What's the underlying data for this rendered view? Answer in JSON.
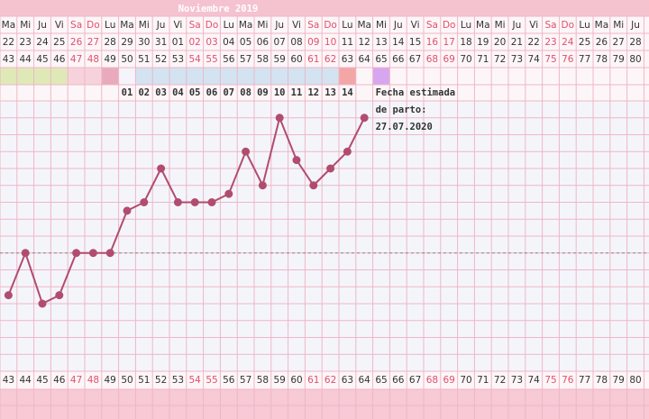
{
  "header": {
    "month": "Noviembre 2019"
  },
  "chart_data": {
    "type": "line",
    "weekdays": [
      "Ma",
      "Mi",
      "Ju",
      "Vi",
      "Sa",
      "Do",
      "Lu",
      "Ma",
      "Mi",
      "Ju",
      "Vi",
      "Sa",
      "Do",
      "Lu",
      "Ma",
      "Mi",
      "Ju",
      "Vi",
      "Sa",
      "Do",
      "Lu",
      "Ma",
      "Mi",
      "Ju",
      "Vi",
      "Sa",
      "Do",
      "Lu",
      "Ma",
      "Mi",
      "Ju",
      "Vi",
      "Sa",
      "Do",
      "Lu",
      "Ma",
      "Mi",
      "Ju"
    ],
    "dates": [
      "22",
      "23",
      "24",
      "25",
      "26",
      "27",
      "28",
      "29",
      "30",
      "31",
      "01",
      "02",
      "03",
      "04",
      "05",
      "06",
      "07",
      "08",
      "09",
      "10",
      "11",
      "12",
      "13",
      "14",
      "15",
      "16",
      "17",
      "18",
      "19",
      "20",
      "21",
      "22",
      "23",
      "24",
      "25",
      "26",
      "27",
      "28"
    ],
    "categories": [
      43,
      44,
      45,
      46,
      47,
      48,
      49,
      50,
      51,
      52,
      53,
      54,
      55,
      56,
      57,
      58,
      59,
      60,
      61,
      62,
      63,
      64,
      65,
      66,
      67,
      68,
      69,
      70,
      71,
      72,
      73,
      74,
      75,
      76,
      77,
      78,
      79,
      80
    ],
    "weekend": [
      false,
      false,
      false,
      false,
      true,
      true,
      false,
      false,
      false,
      false,
      false,
      true,
      true,
      false,
      false,
      false,
      false,
      false,
      true,
      true,
      false,
      false,
      false,
      false,
      false,
      true,
      true,
      false,
      false,
      false,
      false,
      false,
      true,
      true,
      false,
      false,
      false,
      false
    ],
    "weekend_color": "#e0506e",
    "band_colors": [
      "#dfe9b8",
      "#dfe9b8",
      "#dfe9b8",
      "#dfe9b8",
      "#f6d3dc",
      "#f6d3dc",
      "#e9aabb",
      "#f4f4fa",
      "#d3e3f2",
      "#d3e3f2",
      "#d3e3f2",
      "#d3e3f2",
      "#d3e3f2",
      "#d3e3f2",
      "#d3e3f2",
      "#d3e3f2",
      "#d3e3f2",
      "#d3e3f2",
      "#d3e3f2",
      "#d3e3f2",
      "#f4a6a6",
      null,
      "#d7a6f0",
      null,
      null,
      null,
      null,
      null,
      null,
      null,
      null,
      null,
      null,
      null,
      null,
      null,
      null,
      null
    ],
    "day_count": [
      null,
      null,
      null,
      null,
      null,
      null,
      null,
      "01",
      "02",
      "03",
      "04",
      "05",
      "06",
      "07",
      "08",
      "09",
      "10",
      "11",
      "12",
      "13",
      "14",
      null,
      null,
      null,
      null,
      null,
      null,
      null,
      null,
      null,
      null,
      null,
      null,
      null,
      null,
      null,
      null,
      null
    ],
    "series": [
      {
        "color": "#b24c6e",
        "values": [
          4.5,
          7,
          4,
          4.5,
          7,
          7,
          7,
          9.5,
          10,
          12,
          10,
          10,
          10,
          10.5,
          13,
          11,
          15,
          12.5,
          11,
          12,
          13,
          15,
          null,
          null,
          null,
          null,
          null,
          null,
          null,
          null,
          null,
          null,
          null,
          null,
          null,
          null,
          null,
          null
        ]
      }
    ],
    "coverline": 7,
    "ylim": [
      0,
      16
    ],
    "yticks": [
      0,
      1,
      2,
      3,
      4,
      5,
      6,
      7,
      8,
      9,
      10,
      11,
      12,
      13,
      14,
      15,
      16
    ],
    "grid": true,
    "annotation": [
      "Fecha estimada",
      "de parto:",
      "27.07.2020"
    ]
  }
}
